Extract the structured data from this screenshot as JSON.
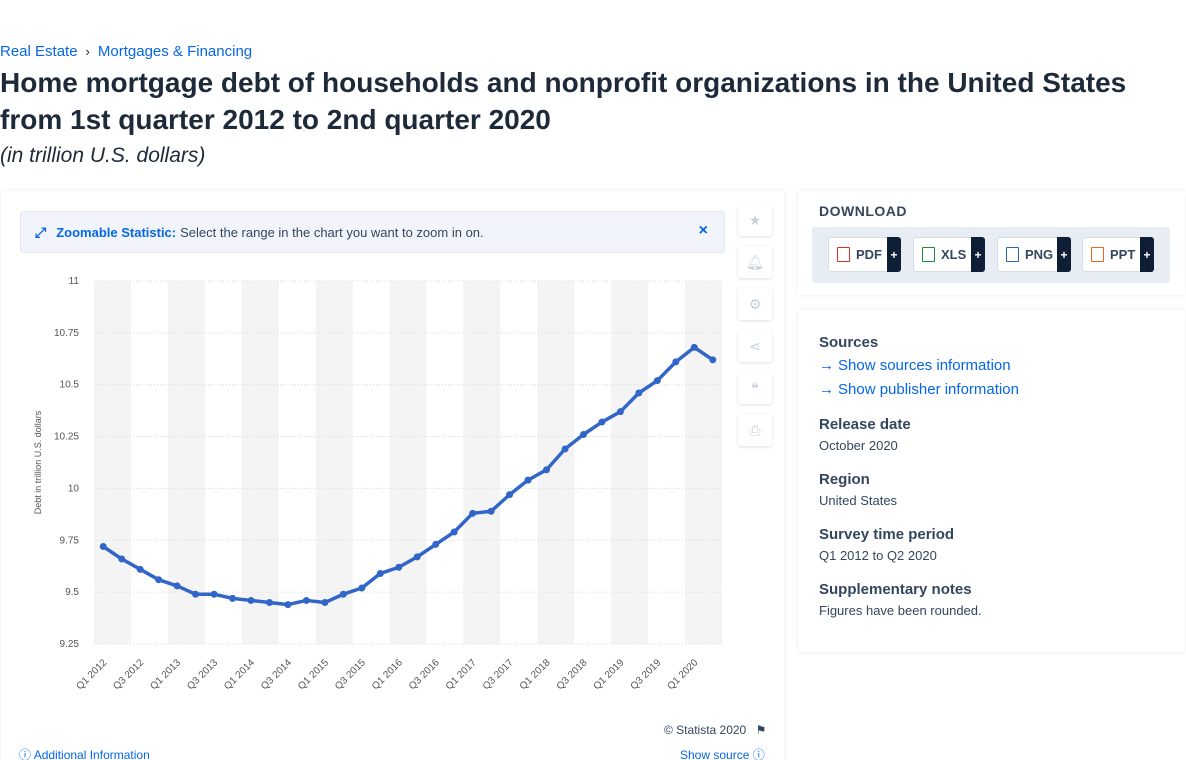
{
  "breadcrumb": {
    "items": [
      "Real Estate",
      "Mortgages & Financing"
    ],
    "separator": "›"
  },
  "page": {
    "title": "Home mortgage debt of households and nonprofit organizations in the United States from 1st quarter 2012 to 2nd quarter 2020",
    "subtitle": "(in trillion U.S. dollars)"
  },
  "zoom_banner": {
    "label": "Zoomable Statistic:",
    "text": "Select the range in the chart you want to zoom in on."
  },
  "toolbar": {
    "icons": [
      "star-icon",
      "bell-icon",
      "gear-icon",
      "share-icon",
      "quote-icon",
      "print-icon"
    ]
  },
  "footer": {
    "copyright": "© Statista 2020",
    "additional_info": "Additional Information",
    "show_source": "Show source"
  },
  "download": {
    "heading": "DOWNLOAD",
    "buttons": [
      {
        "label": "PDF",
        "color": "#d9302b"
      },
      {
        "label": "XLS",
        "color": "#1e8a3c"
      },
      {
        "label": "PNG",
        "color": "#2a66b8"
      },
      {
        "label": "PPT",
        "color": "#e06a1d"
      }
    ]
  },
  "info": {
    "sources_heading": "Sources",
    "show_sources": "Show sources information",
    "show_publisher": "Show publisher information",
    "release_heading": "Release date",
    "release_value": "October 2020",
    "region_heading": "Region",
    "region_value": "United States",
    "survey_heading": "Survey time period",
    "survey_value": "Q1 2012 to Q2 2020",
    "notes_heading": "Supplementary notes",
    "notes_value": "Figures have been rounded."
  },
  "colors": {
    "accent": "#0666e5",
    "line": "#3166c8",
    "band": "#f4f4f4"
  },
  "chart_data": {
    "type": "line",
    "title": "",
    "xlabel": "",
    "ylabel": "Debt in trillion U.S. dollars",
    "ylim": [
      9.25,
      11
    ],
    "yticks": [
      9.25,
      9.5,
      9.75,
      10,
      10.25,
      10.5,
      10.75,
      11
    ],
    "ytick_labels": [
      "9.25",
      "9.5",
      "9.75",
      "10",
      "10.25",
      "10.5",
      "10.75",
      "11"
    ],
    "grid": true,
    "categories": [
      "Q1 2012",
      "Q2 2012",
      "Q3 2012",
      "Q4 2012",
      "Q1 2013",
      "Q2 2013",
      "Q3 2013",
      "Q4 2013",
      "Q1 2014",
      "Q2 2014",
      "Q3 2014",
      "Q4 2014",
      "Q1 2015",
      "Q2 2015",
      "Q3 2015",
      "Q4 2015",
      "Q1 2016",
      "Q2 2016",
      "Q3 2016",
      "Q4 2016",
      "Q1 2017",
      "Q2 2017",
      "Q3 2017",
      "Q4 2017",
      "Q1 2018",
      "Q2 2018",
      "Q3 2018",
      "Q4 2018",
      "Q1 2019",
      "Q2 2019",
      "Q3 2019",
      "Q4 2019",
      "Q1 2020",
      "Q2 2020"
    ],
    "xtick_labels": [
      "Q1 2012",
      "Q3 2012",
      "Q1 2013",
      "Q3 2013",
      "Q1 2014",
      "Q3 2014",
      "Q1 2015",
      "Q3 2015",
      "Q1 2016",
      "Q3 2016",
      "Q1 2017",
      "Q3 2017",
      "Q1 2018",
      "Q3 2018",
      "Q1 2019",
      "Q3 2019",
      "Q1 2020"
    ],
    "series": [
      {
        "values": [
          9.72,
          9.66,
          9.61,
          9.56,
          9.53,
          9.49,
          9.49,
          9.47,
          9.46,
          9.45,
          9.44,
          9.46,
          9.45,
          9.49,
          9.52,
          9.59,
          9.62,
          9.67,
          9.73,
          9.79,
          9.88,
          9.89,
          9.97,
          10.04,
          10.09,
          10.19,
          10.26,
          10.32,
          10.37,
          10.46,
          10.52,
          10.61,
          10.68,
          10.62
        ]
      }
    ]
  }
}
